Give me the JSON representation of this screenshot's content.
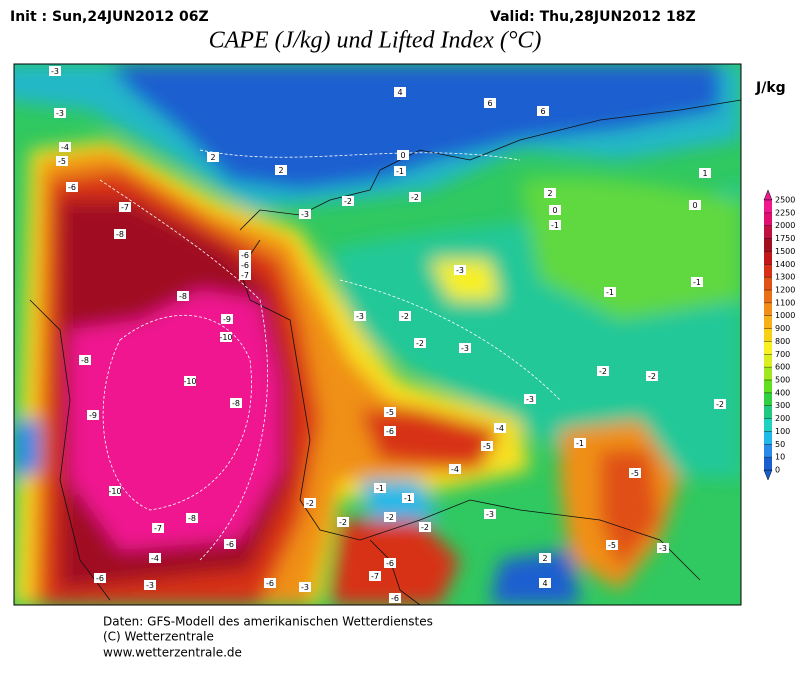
{
  "header": {
    "init": "Init : Sun,24JUN2012 06Z",
    "valid": "Valid: Thu,28JUN2012 18Z",
    "title": "CAPE (J/kg) und Lifted Index (°C)",
    "unit": "J/kg"
  },
  "colorbar": {
    "levels": [
      0,
      10,
      50,
      100,
      200,
      300,
      400,
      500,
      600,
      700,
      800,
      900,
      1000,
      1100,
      1200,
      1300,
      1400,
      1500,
      1750,
      2000,
      2250,
      2500
    ],
    "colors": [
      "#1a5fd0",
      "#2a8ae8",
      "#20b8e8",
      "#20d0c0",
      "#20c880",
      "#30d040",
      "#60e020",
      "#a0e820",
      "#d8f020",
      "#f8f020",
      "#f8d018",
      "#f8b018",
      "#f09018",
      "#e87018",
      "#e05018",
      "#d83018",
      "#c01818",
      "#a01020",
      "#c01040",
      "#e01070",
      "#f01890"
    ]
  },
  "lifted_index_labels": [
    -3,
    -3,
    -4,
    -5,
    -6,
    -7,
    -8,
    -8,
    -9,
    -10,
    -10,
    -8,
    -9,
    -8,
    -10,
    -8,
    -7,
    -6,
    -4,
    -6,
    -3,
    2,
    2,
    4,
    6,
    6,
    0,
    -1,
    -3,
    -1,
    -3,
    -2,
    -2,
    -3,
    -5,
    -6,
    -5,
    -4,
    -4,
    -1,
    -3,
    -5,
    -5,
    -3,
    2,
    4,
    -6,
    -7,
    -6,
    -1,
    -1,
    -2,
    -2,
    -3,
    -2,
    -2,
    -3,
    -6,
    0,
    -1,
    -2,
    -2,
    -3,
    -6,
    -6,
    -7,
    -2,
    -2,
    -2,
    -1,
    1,
    0,
    2
  ],
  "footer": [
    "Daten: GFS-Modell des amerikanischen Wetterdienstes",
    "(C) Wetterzentrale",
    "www.wetterzentrale.de"
  ]
}
